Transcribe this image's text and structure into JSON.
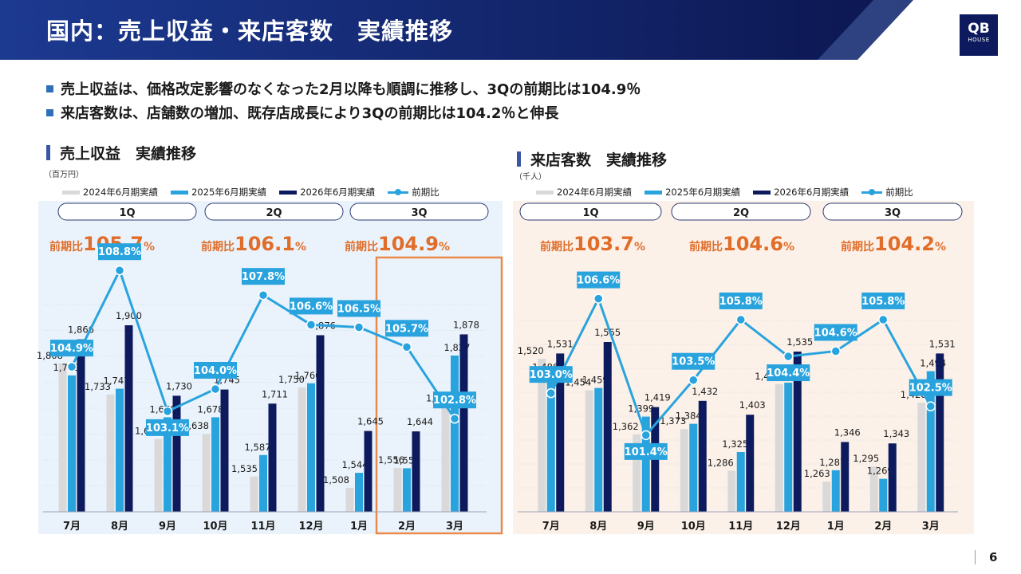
{
  "page": {
    "title": "国内：売上収益・来店客数　実績推移",
    "logo": {
      "line1": "QB",
      "line2": "HOUSE"
    },
    "bullets": [
      "売上収益は、価格改定影響のなくなった2月以降も順調に推移し、3Qの前期比は104.9％",
      "来店客数は、店舗数の増加、既存店成長により3Qの前期比は104.2％と伸長"
    ],
    "page_number": "6"
  },
  "legend": {
    "items": [
      "2024年6月期実績",
      "2025年6月期実績",
      "2026年6月期実績",
      "前期比"
    ]
  },
  "colors": {
    "fy2024": "#d9d9d9",
    "fy2025": "#29a3de",
    "fy2026": "#0d1b5e",
    "ratio_line": "#29a3de",
    "left_panel_bg": "#eaf3fb",
    "right_panel_bg": "#fcf1e8",
    "highlight_border": "#e98a4a"
  },
  "charts": [
    {
      "title": "売上収益　実績推移",
      "unit": "（百万円）",
      "quarters": [
        {
          "label": "1Q",
          "ratio_prefix": "前期比",
          "ratio_value": "105.7",
          "ratio_suffix": "%"
        },
        {
          "label": "2Q",
          "ratio_prefix": "前期比",
          "ratio_value": "106.1",
          "ratio_suffix": "%"
        },
        {
          "label": "3Q",
          "ratio_prefix": "前期比",
          "ratio_value": "104.9",
          "ratio_suffix": "%"
        }
      ]
    },
    {
      "title": "来店客数　実績推移",
      "unit": "（千人）",
      "quarters": [
        {
          "label": "1Q",
          "ratio_prefix": "前期比",
          "ratio_value": "103.7",
          "ratio_suffix": "%"
        },
        {
          "label": "2Q",
          "ratio_prefix": "前期比",
          "ratio_value": "104.6",
          "ratio_suffix": "%"
        },
        {
          "label": "3Q",
          "ratio_prefix": "前期比",
          "ratio_value": "104.2",
          "ratio_suffix": "%"
        }
      ]
    }
  ],
  "chart_data": [
    {
      "type": "bar",
      "title": "売上収益　実績推移",
      "ylabel": "（百万円）",
      "categories": [
        "7月",
        "8月",
        "9月",
        "10月",
        "11月",
        "12月",
        "1月",
        "2月",
        "3月"
      ],
      "series": [
        {
          "name": "2024年6月期実績",
          "values": [
            1808,
            1733,
            1626,
            1638,
            1535,
            1750,
            1508,
            1556,
            1705
          ]
        },
        {
          "name": "2025年6月期実績",
          "values": [
            1779,
            1747,
            1678,
            1678,
            1587,
            1760,
            1544,
            1555,
            1827
          ]
        },
        {
          "name": "2026年6月期実績",
          "values": [
            1866,
            1900,
            1730,
            1745,
            1711,
            1876,
            1645,
            1644,
            1878
          ]
        },
        {
          "name": "前期比",
          "values": [
            104.9,
            108.8,
            103.1,
            104.0,
            107.8,
            106.6,
            106.5,
            105.7,
            102.8
          ],
          "type": "line"
        }
      ],
      "ratio_labels": [
        "104.9%",
        "108.8%",
        "103.1%",
        "104.0%",
        "107.8%",
        "106.6%",
        "106.5%",
        "105.7%",
        "102.8%"
      ],
      "ylim": [
        1450,
        1950
      ],
      "ratio_ylim": [
        100,
        110
      ],
      "highlight": "3Q",
      "legend": "top"
    },
    {
      "type": "bar",
      "title": "来店客数　実績推移",
      "ylabel": "（千人）",
      "categories": [
        "7月",
        "8月",
        "9月",
        "10月",
        "11月",
        "12月",
        "1月",
        "2月",
        "3月"
      ],
      "series": [
        {
          "name": "2024年6月期実績",
          "values": [
            1520,
            1454,
            1362,
            1373,
            1286,
            1467,
            1263,
            1295,
            1428
          ]
        },
        {
          "name": "2025年6月期実績",
          "values": [
            1486,
            1459,
            1399,
            1384,
            1325,
            1470,
            1287,
            1269,
            1494
          ]
        },
        {
          "name": "2026年6月期実績",
          "values": [
            1531,
            1555,
            1419,
            1432,
            1403,
            1535,
            1346,
            1343,
            1531
          ]
        },
        {
          "name": "前期比",
          "values": [
            103.0,
            106.6,
            101.4,
            103.5,
            105.8,
            104.4,
            104.6,
            105.8,
            102.5
          ],
          "type": "line"
        }
      ],
      "ratio_labels": [
        "103.0%",
        "106.6%",
        "101.4%",
        "103.5%",
        "105.8%",
        "104.4%",
        "104.6%",
        "105.8%",
        "102.5%"
      ],
      "ylim": [
        1200,
        1600
      ],
      "ratio_ylim": [
        100,
        108.5
      ],
      "legend": "top"
    }
  ]
}
